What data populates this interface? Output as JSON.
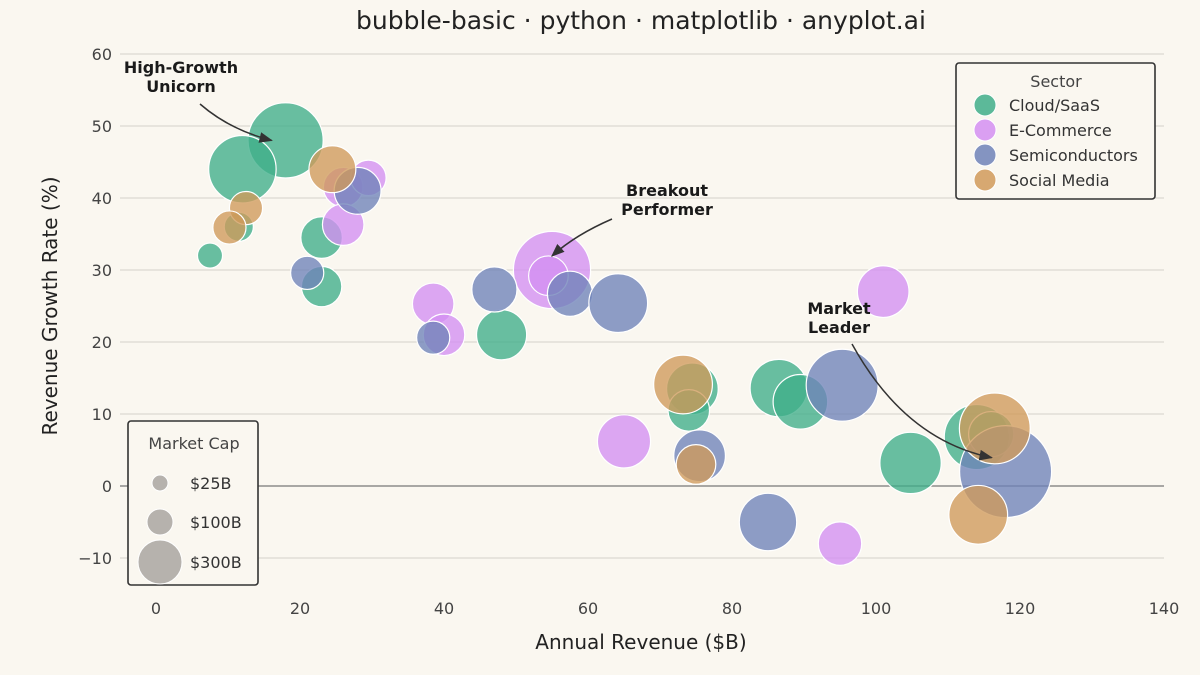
{
  "chart_data": {
    "type": "scatter",
    "subtype": "bubble",
    "title": "bubble-basic · python · matplotlib · anyplot.ai",
    "xlabel": "Annual Revenue ($B)",
    "ylabel": "Revenue Growth Rate (%)",
    "xlim": [
      -5,
      140
    ],
    "ylim": [
      -15,
      60
    ],
    "xticks": [
      0,
      20,
      40,
      60,
      80,
      100,
      120,
      140
    ],
    "yticks": [
      -10,
      0,
      10,
      20,
      30,
      40,
      50,
      60
    ],
    "grid": "horizontal",
    "zero_line": true,
    "legend": {
      "title": "Sector",
      "placement": "top-right"
    },
    "size_legend": {
      "title": "Market Cap",
      "placement": "bottom-left",
      "entries": [
        {
          "label": "$25B",
          "value": 25
        },
        {
          "label": "$100B",
          "value": 100
        },
        {
          "label": "$300B",
          "value": 300
        }
      ]
    },
    "series": [
      {
        "name": "Cloud/SaaS",
        "color": "#3fae89",
        "points": [
          {
            "x": 18,
            "y": 48,
            "size": 180
          },
          {
            "x": 12,
            "y": 44,
            "size": 145
          },
          {
            "x": 7.5,
            "y": 32,
            "size": 20
          },
          {
            "x": 11.5,
            "y": 36,
            "size": 27
          },
          {
            "x": 23,
            "y": 34.5,
            "size": 55
          },
          {
            "x": 23,
            "y": 27.7,
            "size": 52
          },
          {
            "x": 48,
            "y": 21,
            "size": 80
          },
          {
            "x": 74.5,
            "y": 13.5,
            "size": 85
          },
          {
            "x": 74,
            "y": 10.5,
            "size": 55
          },
          {
            "x": 86.5,
            "y": 13.6,
            "size": 105
          },
          {
            "x": 89.5,
            "y": 11.7,
            "size": 95
          },
          {
            "x": 104.8,
            "y": 3.2,
            "size": 120
          },
          {
            "x": 114,
            "y": 6.8,
            "size": 135
          },
          {
            "x": 116,
            "y": 7.2,
            "size": 65
          }
        ]
      },
      {
        "name": "E-Commerce",
        "color": "#d48ff2",
        "points": [
          {
            "x": 26,
            "y": 41.5,
            "size": 50
          },
          {
            "x": 29.5,
            "y": 42.8,
            "size": 40
          },
          {
            "x": 26,
            "y": 36.3,
            "size": 55
          },
          {
            "x": 38.5,
            "y": 25.3,
            "size": 55
          },
          {
            "x": 40,
            "y": 21,
            "size": 55
          },
          {
            "x": 55,
            "y": 30,
            "size": 190
          },
          {
            "x": 54.5,
            "y": 29.2,
            "size": 50
          },
          {
            "x": 65,
            "y": 6.2,
            "size": 90
          },
          {
            "x": 101,
            "y": 27,
            "size": 85
          },
          {
            "x": 95,
            "y": -8,
            "size": 60
          }
        ]
      },
      {
        "name": "Semiconductors",
        "color": "#6e83b8",
        "points": [
          {
            "x": 28,
            "y": 41,
            "size": 70
          },
          {
            "x": 21,
            "y": 29.6,
            "size": 35
          },
          {
            "x": 38.5,
            "y": 20.6,
            "size": 35
          },
          {
            "x": 47,
            "y": 27.3,
            "size": 65
          },
          {
            "x": 57.5,
            "y": 26.7,
            "size": 65
          },
          {
            "x": 64.2,
            "y": 25.4,
            "size": 110
          },
          {
            "x": 75.5,
            "y": 4.2,
            "size": 85
          },
          {
            "x": 95.3,
            "y": 14,
            "size": 165
          },
          {
            "x": 85,
            "y": -5,
            "size": 105
          },
          {
            "x": 118,
            "y": 2,
            "size": 270
          }
        ]
      },
      {
        "name": "Social Media",
        "color": "#d09a5a",
        "points": [
          {
            "x": 24.5,
            "y": 44,
            "size": 70
          },
          {
            "x": 12.5,
            "y": 38.6,
            "size": 35
          },
          {
            "x": 10.2,
            "y": 35.9,
            "size": 35
          },
          {
            "x": 73.2,
            "y": 14.1,
            "size": 110
          },
          {
            "x": 75,
            "y": 3,
            "size": 50
          },
          {
            "x": 116.5,
            "y": 8,
            "size": 160
          },
          {
            "x": 114.2,
            "y": -4,
            "size": 110
          }
        ]
      }
    ],
    "annotations": [
      {
        "text": [
          "High-Growth",
          "Unicorn"
        ],
        "target": {
          "x": 18,
          "y": 48
        }
      },
      {
        "text": [
          "Breakout",
          "Performer"
        ],
        "target": {
          "x": 55,
          "y": 30
        }
      },
      {
        "text": [
          "Market",
          "Leader"
        ],
        "target": {
          "x": 118,
          "y": 2
        }
      }
    ]
  }
}
